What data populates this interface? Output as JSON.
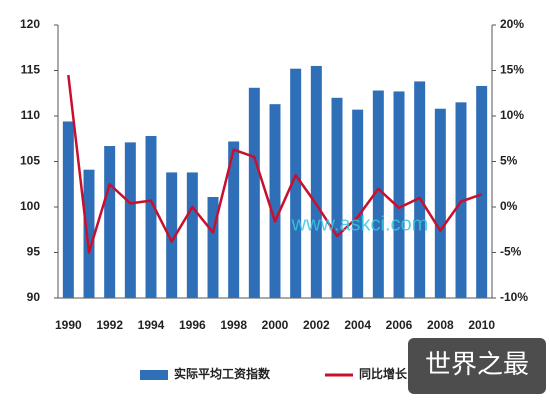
{
  "chart_data": {
    "type": "bar-line",
    "categories": [
      "1990",
      null,
      "1992",
      null,
      "1994",
      null,
      "1996",
      null,
      "1998",
      null,
      "2000",
      null,
      "2002",
      null,
      "2004",
      null,
      "2006",
      null,
      "2008",
      null,
      "2010"
    ],
    "series": [
      {
        "name": "实际平均工资指数",
        "type": "bar",
        "color": "#2f6fb8",
        "values": [
          109.4,
          104.1,
          106.7,
          107.1,
          107.8,
          103.8,
          103.8,
          101.1,
          107.2,
          113.1,
          111.3,
          115.2,
          115.5,
          112.0,
          110.7,
          112.8,
          112.7,
          113.8,
          110.8,
          111.5,
          113.3
        ]
      },
      {
        "name": "同比增长",
        "type": "line",
        "axis": "y2",
        "color": "#c8102e",
        "values": [
          14.5,
          -5,
          2.5,
          0.4,
          0.7,
          -3.8,
          0,
          -2.8,
          6.3,
          5.5,
          -1.6,
          3.5,
          0.3,
          -3.2,
          -1.1,
          2,
          -0.1,
          1,
          -2.6,
          0.6,
          1.4
        ]
      }
    ],
    "ylim": [
      90,
      120
    ],
    "yticks": [
      90,
      95,
      100,
      105,
      110,
      115,
      120
    ],
    "y2lim": [
      -10,
      20
    ],
    "y2ticks": [
      {
        "value": -10,
        "label": "-10%"
      },
      {
        "value": -5,
        "label": "-5%"
      },
      {
        "value": 0,
        "label": "0%"
      },
      {
        "value": 5,
        "label": "5%"
      },
      {
        "value": 10,
        "label": "10%"
      },
      {
        "value": 15,
        "label": "15%"
      },
      {
        "value": 20,
        "label": "20%"
      }
    ],
    "grid": false,
    "legend": "bottom",
    "watermark": "www.askci.com",
    "badge": "世界之最"
  }
}
